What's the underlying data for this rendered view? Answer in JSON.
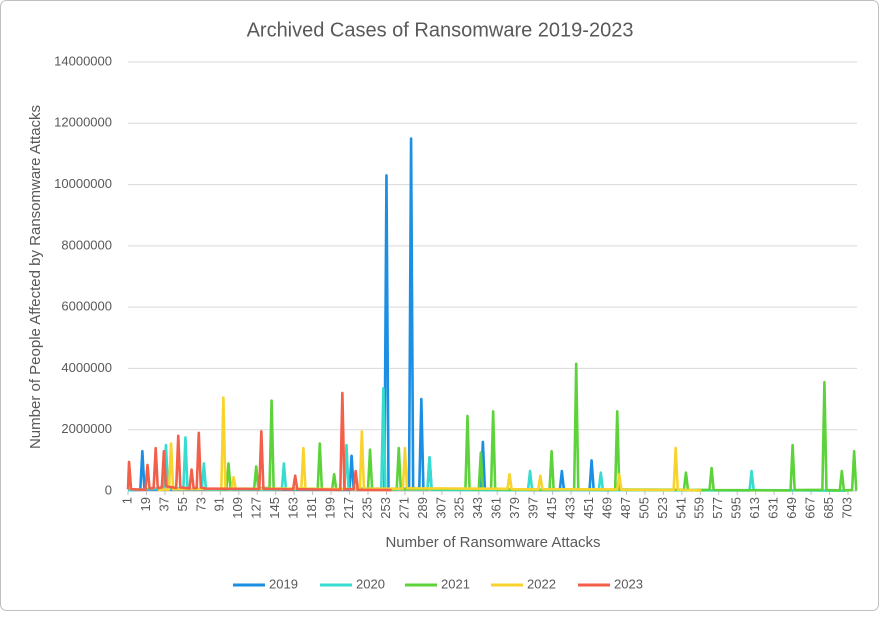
{
  "chart_data": {
    "type": "line",
    "title": "Archived Cases of Ransomware 2019-2023",
    "x_label": "Number of Ransomware Attacks",
    "y_label": "Number of People Affected by Ransomware Attacks",
    "xlim": [
      1,
      712
    ],
    "xticks": [
      1,
      19,
      37,
      55,
      73,
      91,
      109,
      127,
      145,
      163,
      181,
      199,
      217,
      235,
      253,
      271,
      289,
      307,
      325,
      343,
      361,
      379,
      397,
      415,
      433,
      451,
      469,
      487,
      505,
      523,
      541,
      559,
      577,
      595,
      613,
      631,
      649,
      667,
      685,
      703
    ],
    "ylim": [
      0,
      14000000
    ],
    "yticks": [
      0,
      2000000,
      4000000,
      6000000,
      8000000,
      10000000,
      12000000,
      14000000
    ],
    "grid": true,
    "legend": "bottom",
    "series": [
      {
        "name": "2019",
        "color": "#1b8fe3",
        "x": [
          1,
          13,
          15,
          17,
          217,
          219,
          221,
          251,
          253,
          255,
          275,
          277,
          279,
          285,
          287,
          289,
          293,
          295,
          297,
          345,
          347,
          349,
          422,
          424,
          426,
          451,
          453,
          455,
          470
        ],
        "values": [
          30000,
          40000,
          1300000,
          50000,
          40000,
          1150000,
          50000,
          60000,
          10300000,
          70000,
          80000,
          11500000,
          90000,
          60000,
          3000000,
          70000,
          50000,
          1100000,
          60000,
          50000,
          1600000,
          40000,
          30000,
          650000,
          40000,
          40000,
          1000000,
          50000,
          20000
        ]
      },
      {
        "name": "2020",
        "color": "#36dccf",
        "x": [
          1,
          36,
          38,
          40,
          55,
          57,
          59,
          73,
          75,
          77,
          151,
          153,
          155,
          212,
          214,
          216,
          248,
          250,
          252,
          293,
          295,
          297,
          391,
          393,
          395,
          460,
          462,
          464,
          607,
          609,
          611,
          700
        ],
        "values": [
          20000,
          100000,
          1500000,
          90000,
          80000,
          1750000,
          70000,
          60000,
          900000,
          50000,
          40000,
          900000,
          50000,
          60000,
          1500000,
          70000,
          80000,
          3350000,
          60000,
          50000,
          1100000,
          40000,
          30000,
          650000,
          40000,
          30000,
          600000,
          30000,
          20000,
          650000,
          30000,
          10000
        ]
      },
      {
        "name": "2021",
        "color": "#5dd33b",
        "x": [
          90,
          97,
          99,
          101,
          124,
          126,
          128,
          139,
          141,
          143,
          186,
          188,
          190,
          200,
          202,
          204,
          235,
          237,
          239,
          263,
          265,
          267,
          330,
          332,
          334,
          343,
          345,
          347,
          355,
          357,
          359,
          412,
          414,
          416,
          436,
          438,
          440,
          476,
          478,
          480,
          543,
          545,
          547,
          568,
          570,
          572,
          647,
          649,
          651,
          678,
          680,
          682,
          695,
          697,
          699,
          707,
          709,
          711
        ],
        "values": [
          50000,
          60000,
          900000,
          70000,
          80000,
          800000,
          90000,
          100000,
          2950000,
          80000,
          70000,
          1550000,
          60000,
          50000,
          550000,
          60000,
          70000,
          1350000,
          60000,
          50000,
          1400000,
          60000,
          70000,
          2450000,
          60000,
          50000,
          1250000,
          60000,
          70000,
          2600000,
          50000,
          40000,
          1300000,
          50000,
          60000,
          4150000,
          50000,
          40000,
          2600000,
          50000,
          40000,
          600000,
          30000,
          40000,
          750000,
          30000,
          20000,
          1500000,
          30000,
          40000,
          3550000,
          30000,
          20000,
          650000,
          20000,
          30000,
          1300000,
          20000
        ]
      },
      {
        "name": "2022",
        "color": "#f9d32d",
        "x": [
          30,
          41,
          43,
          45,
          92,
          94,
          96,
          102,
          104,
          106,
          170,
          172,
          174,
          227,
          229,
          231,
          269,
          271,
          273,
          371,
          373,
          375,
          401,
          403,
          405,
          478,
          480,
          482,
          533,
          535,
          537,
          560
        ],
        "values": [
          40000,
          50000,
          1550000,
          60000,
          70000,
          3050000,
          80000,
          60000,
          450000,
          70000,
          80000,
          1400000,
          70000,
          60000,
          1950000,
          70000,
          80000,
          1400000,
          90000,
          70000,
          550000,
          60000,
          50000,
          500000,
          60000,
          50000,
          550000,
          40000,
          30000,
          1400000,
          40000,
          20000
        ]
      },
      {
        "name": "2023",
        "color": "#f2604a",
        "x": [
          1,
          2,
          4,
          18,
          20,
          22,
          26,
          28,
          30,
          34,
          36,
          38,
          48,
          50,
          52,
          61,
          63,
          65,
          68,
          70,
          72,
          76,
          129,
          131,
          133,
          162,
          164,
          166,
          208,
          210,
          212,
          221,
          223,
          225,
          258
        ],
        "values": [
          50000,
          950000,
          60000,
          40000,
          850000,
          80000,
          100000,
          1400000,
          90000,
          120000,
          1300000,
          150000,
          100000,
          1800000,
          120000,
          80000,
          700000,
          90000,
          100000,
          1900000,
          120000,
          80000,
          60000,
          1950000,
          70000,
          50000,
          500000,
          60000,
          40000,
          3200000,
          50000,
          60000,
          650000,
          40000,
          30000
        ]
      }
    ]
  }
}
